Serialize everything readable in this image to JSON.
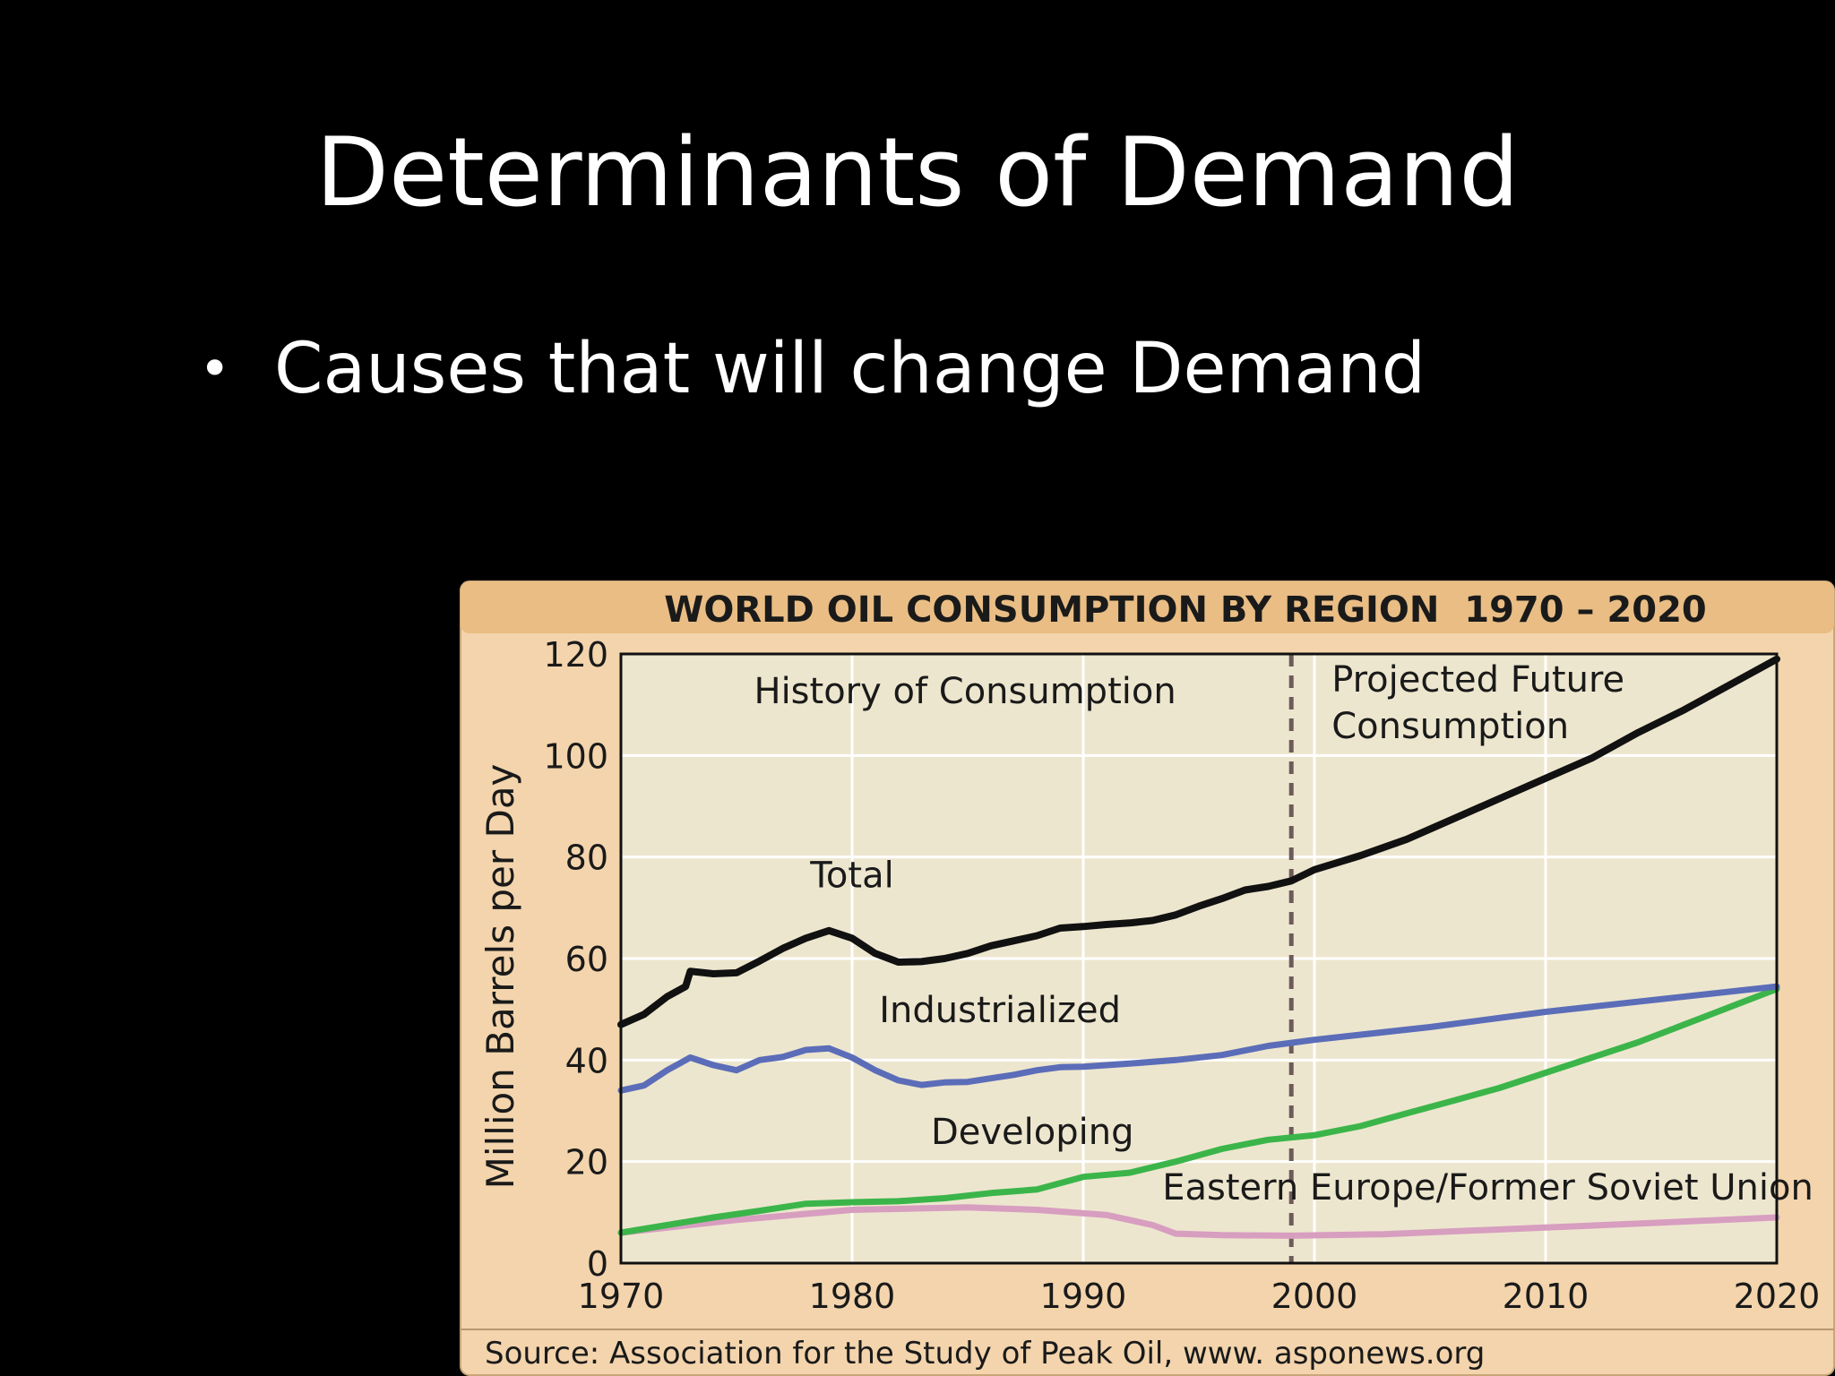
{
  "slide": {
    "title": "Determinants of Demand",
    "bullets": [
      "Causes that will change Demand"
    ]
  },
  "chart_data": {
    "type": "line",
    "title": "WORLD OIL CONSUMPTION BY REGION  1970 – 2020",
    "ylabel": "Million Barrels per Day",
    "xlabel": "",
    "xlim": [
      1970,
      2020
    ],
    "ylim": [
      0,
      120
    ],
    "x_ticks": [
      1970,
      1980,
      1990,
      2000,
      2010,
      2020
    ],
    "y_ticks": [
      0,
      20,
      40,
      60,
      80,
      100,
      120
    ],
    "grid": true,
    "divider_x": 1999,
    "region_labels": {
      "history": "History of Consumption",
      "projected_line1": "Projected Future",
      "projected_line2": "Consumption"
    },
    "source": "Source: Association for the Study of Peak Oil, www. asponews.org",
    "colors": {
      "background": "#000000",
      "frame": "#f3d4ac",
      "plot": "#ede6ce",
      "title_band": "#e9bd84"
    },
    "series": [
      {
        "name": "Total",
        "color": "#111111",
        "x": [
          1970,
          1971,
          1972,
          1972.8,
          1973,
          1974,
          1975,
          1976,
          1977,
          1978,
          1979,
          1980,
          1981,
          1982,
          1983,
          1984,
          1985,
          1986,
          1987,
          1988,
          1989,
          1990,
          1991,
          1992,
          1993,
          1994,
          1995,
          1996,
          1997,
          1998,
          1999,
          2000,
          2002,
          2004,
          2006,
          2008,
          2010,
          2012,
          2014,
          2016,
          2018,
          2020
        ],
        "y": [
          47,
          49,
          52.5,
          54.5,
          57.5,
          57,
          57.2,
          59.5,
          62,
          64,
          65.5,
          64,
          61,
          59.3,
          59.4,
          60,
          61,
          62.5,
          63.5,
          64.5,
          66,
          66.3,
          66.7,
          67,
          67.5,
          68.6,
          70.3,
          71.8,
          73.5,
          74.2,
          75.3,
          77.5,
          80.3,
          83.5,
          87.5,
          91.5,
          95.5,
          99.5,
          104.5,
          109,
          114,
          119
        ]
      },
      {
        "name": "Industrialized",
        "color": "#5b6db8",
        "x": [
          1970,
          1971,
          1972,
          1973,
          1974,
          1975,
          1976,
          1977,
          1978,
          1979,
          1980,
          1981,
          1982,
          1983,
          1984,
          1985,
          1986,
          1987,
          1988,
          1989,
          1990,
          1992,
          1994,
          1996,
          1998,
          2000,
          2005,
          2010,
          2015,
          2020
        ],
        "y": [
          34,
          35,
          38,
          40.5,
          39,
          38,
          40,
          40.6,
          42,
          42.3,
          40.5,
          38,
          36,
          35.1,
          35.6,
          35.7,
          36.4,
          37.1,
          38,
          38.6,
          38.7,
          39.3,
          40,
          41,
          42.8,
          44,
          46.5,
          49.5,
          52,
          54.5
        ]
      },
      {
        "name": "Developing",
        "color": "#3bb54a",
        "x": [
          1970,
          1972,
          1974,
          1976,
          1978,
          1980,
          1982,
          1984,
          1986,
          1988,
          1990,
          1992,
          1994,
          1996,
          1998,
          2000,
          2002,
          2004,
          2006,
          2008,
          2010,
          2012,
          2014,
          2016,
          2018,
          2020
        ],
        "y": [
          6,
          7.5,
          9,
          10.3,
          11.7,
          12,
          12.2,
          12.8,
          13.8,
          14.5,
          17,
          17.8,
          20,
          22.5,
          24.3,
          25.2,
          27,
          29.5,
          32,
          34.5,
          37.5,
          40.5,
          43.5,
          47,
          50.5,
          54
        ]
      },
      {
        "name": "Eastern Europe/Former Soviet Union",
        "color": "#d79ec0",
        "x": [
          1970,
          1975,
          1980,
          1985,
          1988,
          1991,
          1993,
          1994,
          1996,
          1999,
          2003,
          2010,
          2015,
          2020
        ],
        "y": [
          6,
          8.5,
          10.5,
          11,
          10.5,
          9.5,
          7.5,
          5.8,
          5.5,
          5.4,
          5.7,
          7,
          8,
          9
        ]
      }
    ],
    "series_labels": [
      {
        "text": "Total",
        "x": 1970.0,
        "y": 0
      },
      {
        "text": "Industrialized",
        "x": 1970.0,
        "y": 0
      },
      {
        "text": "Developing",
        "x": 1970.0,
        "y": 0
      },
      {
        "text": "Eastern Europe/Former Soviet Union",
        "x": 1970.0,
        "y": 0
      }
    ]
  }
}
